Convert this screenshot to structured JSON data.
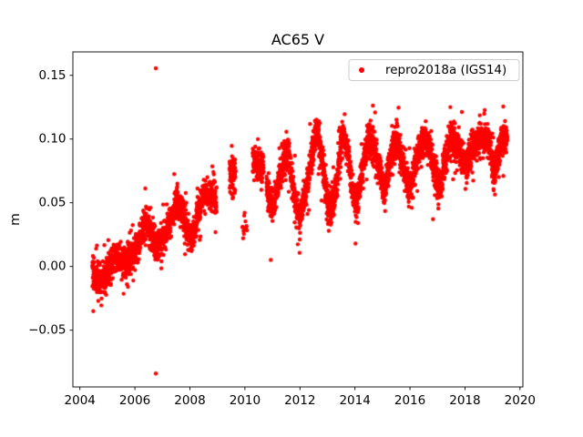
{
  "chart_data": {
    "type": "scatter",
    "title": "AC65 V",
    "xlabel": "",
    "ylabel": "m",
    "xlim": [
      2003.745,
      2020.105
    ],
    "ylim": [
      -0.0945,
      0.1684
    ],
    "xticks": [
      2004,
      2006,
      2008,
      2010,
      2012,
      2014,
      2016,
      2018,
      2020
    ],
    "xtick_labels": [
      "2004",
      "2006",
      "2008",
      "2010",
      "2012",
      "2014",
      "2016",
      "2018",
      "2020"
    ],
    "yticks": [
      -0.05,
      0.0,
      0.05,
      0.1,
      0.15
    ],
    "ytick_labels": [
      "−0.05",
      "0.00",
      "0.05",
      "0.10",
      "0.15"
    ],
    "grid": false,
    "legend": {
      "position": "upper right",
      "entries": [
        {
          "label": "repro2018a (IGS14)",
          "marker": "dot",
          "color": "#ff0000"
        }
      ]
    },
    "series": [
      {
        "name": "repro2018a (IGS14)",
        "color": "#ff0000",
        "marker": "dot",
        "marker_radius_px": 2.2,
        "random_seed": 42,
        "noise_sd": 0.0062,
        "heavy_tail_prob": 0.09,
        "heavy_tail_mult": 2.1,
        "segments": [
          {
            "start": 2004.45,
            "end": 2008.97,
            "points_per_year": 330
          },
          {
            "start": 2009.44,
            "end": 2009.66,
            "points_per_year": 330
          },
          {
            "start": 2009.9,
            "end": 2010.08,
            "points_per_year": 70
          },
          {
            "start": 2010.28,
            "end": 2010.68,
            "points_per_year": 300
          },
          {
            "start": 2010.78,
            "end": 2019.54,
            "points_per_year": 330
          }
        ],
        "trend_anchors": [
          [
            2004.45,
            -0.004
          ],
          [
            2004.6,
            -0.009
          ],
          [
            2004.8,
            -0.011
          ],
          [
            2004.95,
            -0.008
          ],
          [
            2005.1,
            0.0
          ],
          [
            2005.25,
            0.008
          ],
          [
            2005.4,
            0.009
          ],
          [
            2005.55,
            0.003
          ],
          [
            2005.7,
            0.004
          ],
          [
            2005.85,
            0.006
          ],
          [
            2006.0,
            0.01
          ],
          [
            2006.15,
            0.02
          ],
          [
            2006.3,
            0.03
          ],
          [
            2006.45,
            0.036
          ],
          [
            2006.6,
            0.026
          ],
          [
            2006.75,
            0.016
          ],
          [
            2006.9,
            0.017
          ],
          [
            2007.05,
            0.022
          ],
          [
            2007.2,
            0.03
          ],
          [
            2007.35,
            0.04
          ],
          [
            2007.5,
            0.049
          ],
          [
            2007.65,
            0.048
          ],
          [
            2007.8,
            0.038
          ],
          [
            2007.95,
            0.024
          ],
          [
            2008.1,
            0.024
          ],
          [
            2008.25,
            0.038
          ],
          [
            2008.4,
            0.051
          ],
          [
            2008.55,
            0.056
          ],
          [
            2008.7,
            0.057
          ],
          [
            2008.85,
            0.056
          ],
          [
            2008.97,
            0.05
          ],
          [
            2009.44,
            0.075
          ],
          [
            2009.66,
            0.07
          ],
          [
            2009.9,
            0.03
          ],
          [
            2010.08,
            0.028
          ],
          [
            2010.28,
            0.082
          ],
          [
            2010.48,
            0.08
          ],
          [
            2010.68,
            0.077
          ],
          [
            2010.78,
            0.064
          ],
          [
            2010.9,
            0.054
          ],
          [
            2011.0,
            0.046
          ],
          [
            2011.12,
            0.056
          ],
          [
            2011.25,
            0.07
          ],
          [
            2011.4,
            0.083
          ],
          [
            2011.55,
            0.093
          ],
          [
            2011.7,
            0.07
          ],
          [
            2011.85,
            0.049
          ],
          [
            2012.0,
            0.038
          ],
          [
            2012.15,
            0.052
          ],
          [
            2012.3,
            0.068
          ],
          [
            2012.45,
            0.09
          ],
          [
            2012.6,
            0.11
          ],
          [
            2012.75,
            0.094
          ],
          [
            2012.9,
            0.066
          ],
          [
            2013.05,
            0.042
          ],
          [
            2013.2,
            0.05
          ],
          [
            2013.35,
            0.068
          ],
          [
            2013.5,
            0.098
          ],
          [
            2013.6,
            0.104
          ],
          [
            2013.75,
            0.088
          ],
          [
            2013.9,
            0.06
          ],
          [
            2014.02,
            0.048
          ],
          [
            2014.15,
            0.058
          ],
          [
            2014.3,
            0.078
          ],
          [
            2014.45,
            0.1
          ],
          [
            2014.6,
            0.098
          ],
          [
            2014.75,
            0.088
          ],
          [
            2014.9,
            0.075
          ],
          [
            2015.08,
            0.058
          ],
          [
            2015.2,
            0.075
          ],
          [
            2015.35,
            0.09
          ],
          [
            2015.5,
            0.101
          ],
          [
            2015.65,
            0.09
          ],
          [
            2015.8,
            0.075
          ],
          [
            2015.95,
            0.062
          ],
          [
            2016.1,
            0.07
          ],
          [
            2016.25,
            0.085
          ],
          [
            2016.4,
            0.096
          ],
          [
            2016.55,
            0.1
          ],
          [
            2016.7,
            0.094
          ],
          [
            2016.85,
            0.08
          ],
          [
            2017.0,
            0.065
          ],
          [
            2017.12,
            0.062
          ],
          [
            2017.25,
            0.08
          ],
          [
            2017.4,
            0.094
          ],
          [
            2017.55,
            0.1
          ],
          [
            2017.7,
            0.096
          ],
          [
            2017.85,
            0.088
          ],
          [
            2018.0,
            0.082
          ],
          [
            2018.15,
            0.086
          ],
          [
            2018.3,
            0.094
          ],
          [
            2018.45,
            0.101
          ],
          [
            2018.6,
            0.1
          ],
          [
            2018.75,
            0.101
          ],
          [
            2018.9,
            0.094
          ],
          [
            2019.05,
            0.074
          ],
          [
            2019.15,
            0.08
          ],
          [
            2019.3,
            0.098
          ],
          [
            2019.45,
            0.103
          ],
          [
            2019.54,
            0.1
          ]
        ],
        "outliers": [
          [
            2006.76,
            0.1555
          ],
          [
            2006.76,
            -0.084
          ],
          [
            2004.62,
            0.0165
          ],
          [
            2004.78,
            -0.0305
          ],
          [
            2008.93,
            0.027
          ],
          [
            2014.02,
            0.018
          ],
          [
            2017.03,
            0.0455
          ],
          [
            2019.09,
            0.0565
          ]
        ]
      }
    ]
  },
  "colors": {
    "axes": "#000000",
    "background": "#ffffff",
    "legend_border": "#cccccc",
    "legend_background": "#ffffff"
  }
}
